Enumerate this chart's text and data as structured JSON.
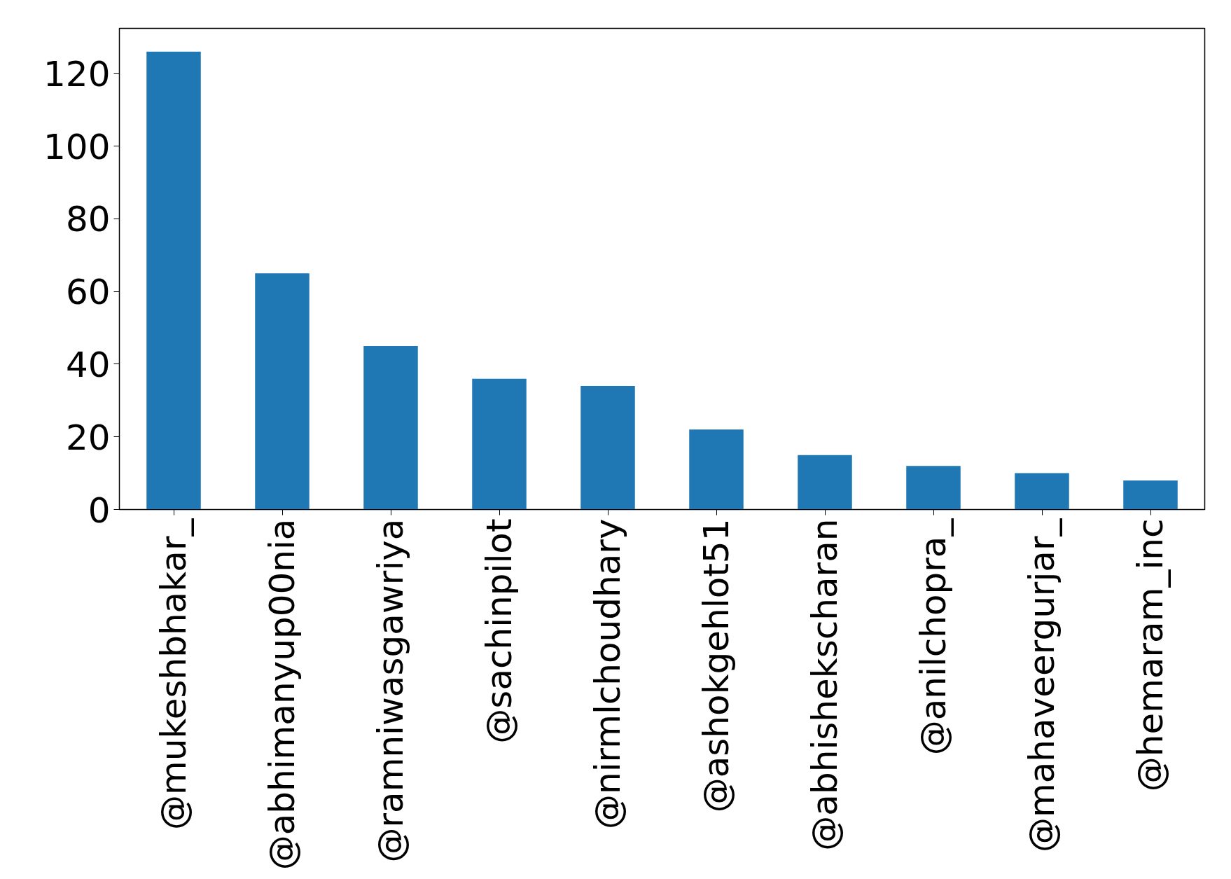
{
  "chart_data": {
    "type": "bar",
    "categories": [
      "@mukeshbhakar_",
      "@abhimanyup00nia",
      "@ramniwasgawriya",
      "@sachinpilot",
      "@nirmlchoudhary",
      "@ashokgehlot51",
      "@abhishekscharan",
      "@anilchopra_",
      "@mahaveergurjar_",
      "@hemaram_inc"
    ],
    "values": [
      126,
      65,
      45,
      36,
      34,
      22,
      15,
      12,
      10,
      8
    ],
    "color": "#1f77b4",
    "ylim": [
      0,
      132.4
    ],
    "yticks": [
      0,
      20,
      40,
      60,
      80,
      100,
      120
    ],
    "grid": false
  }
}
